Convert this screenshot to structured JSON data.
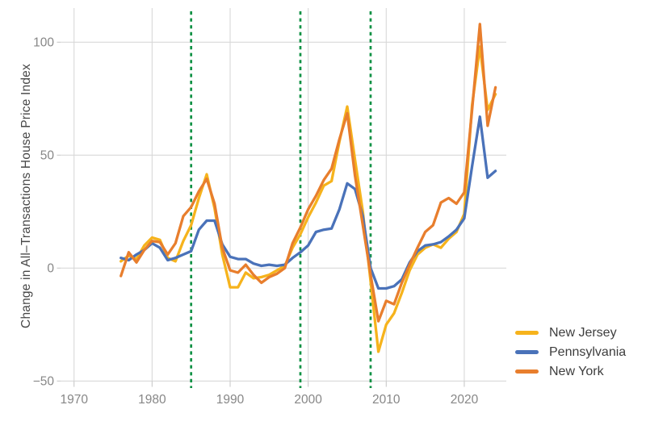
{
  "figure": {
    "background": "#ffffff",
    "grid_color": "#d8d8d8",
    "tick_color": "#c9c9c9",
    "tick_label_color": "#878787",
    "axis_title_color": "#474747",
    "legend_text_color": "#3d3d3d"
  },
  "chart_data": {
    "type": "line",
    "title": "",
    "xlabel": "",
    "ylabel": "Change in All–Transactions House Price Index",
    "grid": true,
    "legend_position": "right-bottom",
    "xlim": [
      1968.3,
      2025.4
    ],
    "ylim": [
      -50,
      115
    ],
    "xticks": [
      1970,
      1980,
      1990,
      2000,
      2010,
      2020
    ],
    "yticks": [
      -50,
      0,
      50,
      100
    ],
    "vlines": {
      "color": "#0e9144",
      "style": "dashed",
      "years": [
        1985,
        1999,
        2008
      ]
    },
    "x": [
      1976,
      1977,
      1978,
      1979,
      1980,
      1981,
      1982,
      1983,
      1984,
      1985,
      1986,
      1987,
      1988,
      1989,
      1990,
      1991,
      1992,
      1993,
      1994,
      1995,
      1996,
      1997,
      1998,
      1999,
      2000,
      2001,
      2002,
      2003,
      2004,
      2005,
      2006,
      2007,
      2008,
      2009,
      2010,
      2011,
      2012,
      2013,
      2014,
      2015,
      2016,
      2017,
      2018,
      2019,
      2020,
      2021,
      2022,
      2023,
      2024
    ],
    "series": [
      {
        "name": "New Jersey",
        "color": "#f6b31c",
        "values": [
          3,
          5.5,
          4,
          10,
          13.5,
          12.5,
          4.5,
          3,
          12,
          19,
          31,
          41.5,
          26.5,
          6,
          -8.5,
          -8.5,
          -2,
          -4.5,
          -4,
          -3,
          -1,
          1,
          9,
          15,
          22.5,
          29,
          36.5,
          38.5,
          56,
          71.5,
          48,
          25,
          -6,
          -37,
          -25,
          -20,
          -11,
          -1,
          6,
          9,
          10.5,
          9,
          13,
          16,
          24,
          72,
          98,
          70,
          77
        ]
      },
      {
        "name": "Pennsylvania",
        "color": "#4a72b9",
        "values": [
          4.5,
          3.5,
          6,
          8,
          11,
          9,
          3.5,
          4.5,
          6,
          7.5,
          17,
          21,
          21,
          10.5,
          5,
          4,
          4,
          2,
          1,
          1.5,
          1,
          1.5,
          4.5,
          7,
          10,
          16,
          17,
          17.5,
          26,
          37.5,
          35,
          23,
          0,
          -9,
          -9,
          -8,
          -5,
          2.5,
          7.5,
          10,
          10.5,
          11.5,
          14,
          17,
          22,
          45,
          67,
          40,
          43
        ]
      },
      {
        "name": "New York",
        "color": "#e87e2d",
        "values": [
          -3.5,
          7,
          2.5,
          8,
          12,
          11.5,
          6,
          11,
          23,
          27,
          34,
          39.5,
          28.5,
          9,
          -1,
          -2,
          1.5,
          -3,
          -6.5,
          -4,
          -2.5,
          0,
          11,
          18,
          26,
          32,
          39,
          44,
          57,
          68.5,
          41,
          19,
          -3,
          -23.5,
          -14.5,
          -16,
          -6.5,
          1.5,
          9,
          16,
          19,
          29,
          31,
          28.5,
          33.5,
          70,
          108,
          63,
          80
        ]
      }
    ],
    "legend": [
      "New Jersey",
      "Pennsylvania",
      "New York"
    ]
  }
}
